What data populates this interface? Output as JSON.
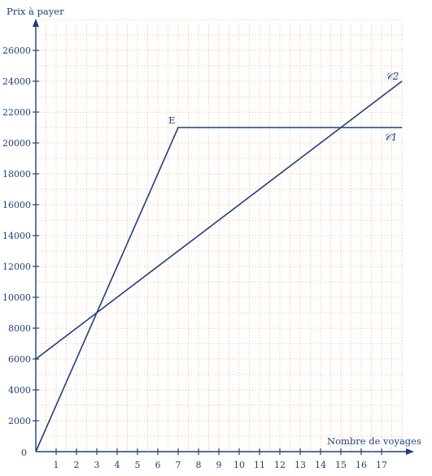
{
  "chart_data": {
    "type": "line",
    "ylabel": "Prix à payer",
    "xlabel": "Nombre de voyages",
    "xlim": [
      0,
      18
    ],
    "ylim": [
      0,
      28000
    ],
    "x_ticks": [
      1,
      2,
      3,
      4,
      5,
      6,
      7,
      8,
      9,
      10,
      11,
      12,
      13,
      14,
      15,
      16,
      17
    ],
    "y_ticks": [
      2000,
      4000,
      6000,
      8000,
      10000,
      12000,
      14000,
      16000,
      18000,
      20000,
      22000,
      24000,
      26000
    ],
    "y_tick_labels": [
      "2000",
      "4000",
      "6000",
      "8000",
      "10000",
      "12000",
      "14000",
      "16000",
      "18000",
      "20000",
      "22000",
      "24000",
      "26000"
    ],
    "origin_label": "0",
    "grid": true,
    "grid_color": "#f0a060",
    "line_color": "#1f3f7a",
    "series": [
      {
        "name": "𝒞1",
        "x": [
          0,
          7,
          18
        ],
        "y": [
          0,
          21000,
          21000
        ]
      },
      {
        "name": "𝒞2",
        "x": [
          0,
          18
        ],
        "y": [
          6000,
          24000
        ]
      }
    ],
    "annotations": [
      {
        "text": "E",
        "x": 7,
        "y": 21000
      }
    ]
  }
}
